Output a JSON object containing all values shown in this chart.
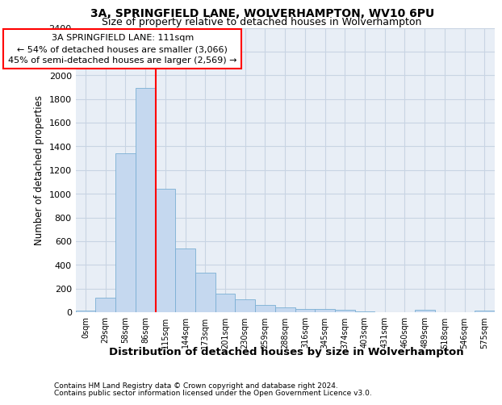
{
  "title_line1": "3A, SPRINGFIELD LANE, WOLVERHAMPTON, WV10 6PU",
  "title_line2": "Size of property relative to detached houses in Wolverhampton",
  "xlabel": "Distribution of detached houses by size in Wolverhampton",
  "ylabel": "Number of detached properties",
  "footer_line1": "Contains HM Land Registry data © Crown copyright and database right 2024.",
  "footer_line2": "Contains public sector information licensed under the Open Government Licence v3.0.",
  "bar_color": "#c5d8ef",
  "bar_edge_color": "#7aafd4",
  "grid_color": "#c8d4e3",
  "background_color": "#e8eef6",
  "annotation_line1": "3A SPRINGFIELD LANE: 111sqm",
  "annotation_line2": "← 54% of detached houses are smaller (3,066)",
  "annotation_line3": "45% of semi-detached houses are larger (2,569) →",
  "vline_color": "red",
  "ylim": [
    0,
    2400
  ],
  "yticks": [
    0,
    200,
    400,
    600,
    800,
    1000,
    1200,
    1400,
    1600,
    1800,
    2000,
    2200,
    2400
  ],
  "bin_labels": [
    "0sqm",
    "29sqm",
    "58sqm",
    "86sqm",
    "115sqm",
    "144sqm",
    "173sqm",
    "201sqm",
    "230sqm",
    "259sqm",
    "288sqm",
    "316sqm",
    "345sqm",
    "374sqm",
    "403sqm",
    "431sqm",
    "460sqm",
    "489sqm",
    "518sqm",
    "546sqm",
    "575sqm"
  ],
  "bar_heights": [
    15,
    120,
    1340,
    1890,
    1040,
    540,
    335,
    160,
    110,
    63,
    38,
    28,
    25,
    20,
    10,
    0,
    0,
    22,
    0,
    0,
    15
  ],
  "title_fontsize": 10,
  "subtitle_fontsize": 9,
  "ylabel_fontsize": 8.5,
  "xlabel_fontsize": 9.5,
  "ytick_fontsize": 8,
  "xtick_fontsize": 7,
  "annotation_fontsize": 8,
  "footer_fontsize": 6.5,
  "vline_x_index": 4
}
